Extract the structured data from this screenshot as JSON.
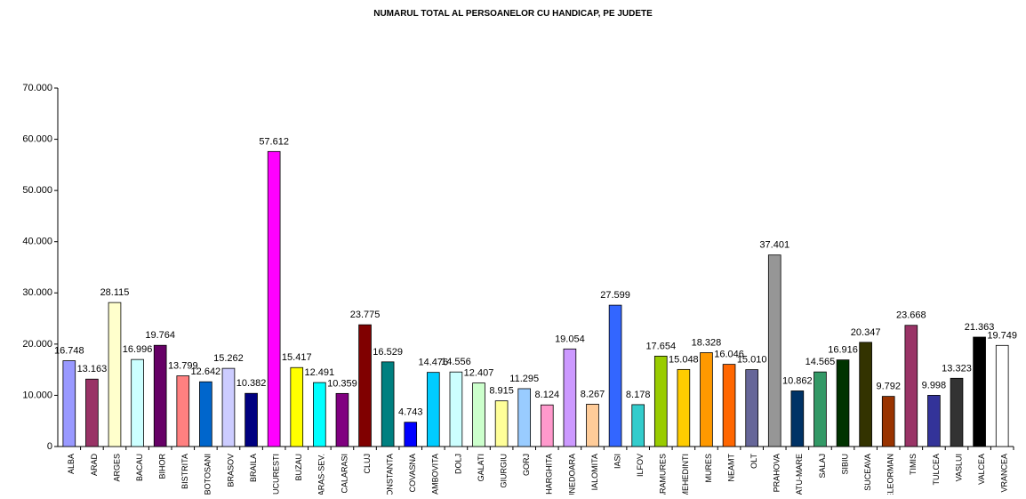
{
  "chart_data": {
    "type": "bar",
    "title": "NUMARUL TOTAL AL PERSOANELOR CU HANDICAP, PE JUDETE",
    "categories": [
      "ALBA",
      "ARAD",
      "ARGES",
      "BACAU",
      "BIHOR",
      "BISTRITA",
      "BOTOSANI",
      "BRASOV",
      "BRAILA",
      "BUCURESTI",
      "BUZAU",
      "CARAS-SEV.",
      "CALARASI",
      "CLUJ",
      "CONSTANTA",
      "COVASNA",
      "DAMBOVITA",
      "DOLJ",
      "GALATI",
      "GIURGIU",
      "GORJ",
      "HARGHITA",
      "HUNEDOARA",
      "IALOMITA",
      "IASI",
      "ILFOV",
      "MARAMURES",
      "MEHEDINTI",
      "MURES",
      "NEAMT",
      "OLT",
      "PRAHOVA",
      "SATU-MARE",
      "SALAJ",
      "SIBIU",
      "SUCEAVA",
      "TELEORMAN",
      "TIMIS",
      "TULCEA",
      "VASLUI",
      "VALCEA",
      "VRANCEA"
    ],
    "values": [
      16748,
      13163,
      28115,
      16996,
      19764,
      13799,
      12642,
      15262,
      10382,
      57612,
      15417,
      12491,
      10359,
      23775,
      16529,
      4743,
      14476,
      14556,
      12407,
      8915,
      11295,
      8124,
      19054,
      8267,
      27599,
      8178,
      17654,
      15048,
      18328,
      16046,
      15010,
      37401,
      10862,
      14565,
      16916,
      20347,
      9792,
      23668,
      9998,
      13323,
      21363,
      19749
    ],
    "value_labels": [
      "16.748",
      "13.163",
      "28.115",
      "16.996",
      "19.764",
      "13.799",
      "12.642",
      "15.262",
      "10.382",
      "57.612",
      "15.417",
      "12.491",
      "10.359",
      "23.775",
      "16.529",
      "4.743",
      "14.476",
      "14.556",
      "12.407",
      "8.915",
      "11.295",
      "8.124",
      "19.054",
      "8.267",
      "27.599",
      "8.178",
      "17.654",
      "15.048",
      "18.328",
      "16.046",
      "15.010",
      "37.401",
      "10.862",
      "14.565",
      "16.916",
      "20.347",
      "9.792",
      "23.668",
      "9.998",
      "13.323",
      "21.363",
      "19.749"
    ],
    "colors": [
      "#9999ff",
      "#993366",
      "#ffffcc",
      "#ccffff",
      "#660066",
      "#ff8080",
      "#0066cc",
      "#ccccff",
      "#000080",
      "#ff00ff",
      "#ffff00",
      "#00ffff",
      "#800080",
      "#800000",
      "#008080",
      "#0000ff",
      "#00ccff",
      "#ccffff",
      "#ccffcc",
      "#ffff99",
      "#99ccff",
      "#ff99cc",
      "#cc99ff",
      "#ffcc99",
      "#3366ff",
      "#33cccc",
      "#99cc00",
      "#ffcc00",
      "#ff9900",
      "#ff6600",
      "#666699",
      "#969696",
      "#003366",
      "#339966",
      "#003300",
      "#333300",
      "#993300",
      "#993366",
      "#333399",
      "#333333",
      "#000000",
      "#ffffff"
    ],
    "ylim": [
      0,
      70000
    ],
    "yticks": [
      0,
      {
        "value": 10000,
        "label": "10.000"
      },
      {
        "value": 20000,
        "label": "20.000"
      },
      {
        "value": 30000,
        "label": "30.000"
      },
      {
        "value": 40000,
        "label": "40.000"
      },
      {
        "value": 50000,
        "label": "50.000"
      },
      {
        "value": 60000,
        "label": "60.000"
      },
      {
        "value": 70000,
        "label": "70.000"
      }
    ],
    "grid": false
  }
}
